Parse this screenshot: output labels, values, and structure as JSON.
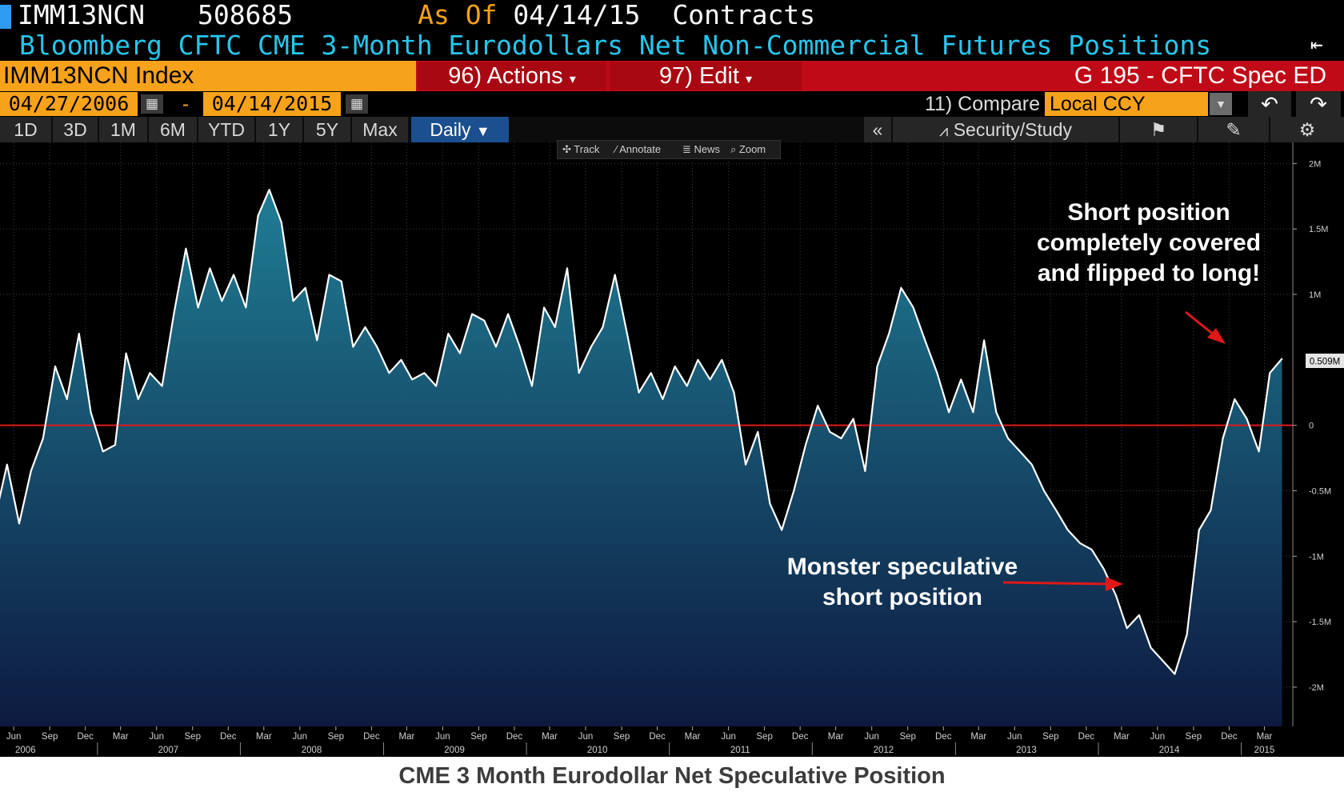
{
  "header": {
    "ticker": "IMM13NCN",
    "last_value": "508685",
    "as_of_label": "As Of",
    "as_of_date": "04/14/15",
    "units": "Contracts",
    "title": "Bloomberg CFTC CME 3-Month Eurodollars Net Non-Commercial Futures Positions",
    "security": "IMM13NCN Index",
    "actions_label": "96) Actions",
    "edit_label": "97) Edit",
    "page_label": "G 195 - CFTC Spec ED"
  },
  "range": {
    "start_date": "04/27/2006",
    "separator": "-",
    "end_date": "04/14/2015",
    "compare_label": "11) Compare",
    "currency": "Local CCY"
  },
  "periods": [
    "1D",
    "3D",
    "1M",
    "6M",
    "YTD",
    "1Y",
    "5Y",
    "Max"
  ],
  "frequency": "Daily",
  "toolbar": {
    "collapse": "«",
    "security_study": "Security/Study",
    "tools": [
      "Track",
      "Annotate",
      "News",
      "Zoom"
    ]
  },
  "colors": {
    "accent_orange": "#f7a21b",
    "bar_red": "#c00a17",
    "line": "#ffffff",
    "zero_line": "#e01818",
    "fill_top": "#1f7d94",
    "fill_bottom": "#0d1a40",
    "title_cyan": "#27c6ec"
  },
  "annotations": {
    "short_covered": [
      "Short position",
      "completely covered",
      "and flipped to long!"
    ],
    "monster_short": [
      "Monster speculative",
      "short position"
    ]
  },
  "footer_caption": "CME 3 Month Eurodollar Net Speculative Position",
  "chart_data": {
    "type": "area",
    "title": "",
    "xlabel": "",
    "ylabel": "",
    "ylim": [
      -2300000,
      2100000
    ],
    "y_ticks": [
      {
        "value": 2000000,
        "label": "2M"
      },
      {
        "value": 1500000,
        "label": "1.5M"
      },
      {
        "value": 1000000,
        "label": "1M"
      },
      {
        "value": 0,
        "label": "0"
      },
      {
        "value": -500000,
        "label": "-0.5M"
      },
      {
        "value": -1000000,
        "label": "-1M"
      },
      {
        "value": -1500000,
        "label": "-1.5M"
      },
      {
        "value": -2000000,
        "label": "-2M"
      }
    ],
    "last_value_label": "0.509M",
    "x_month_ticks": [
      "Jun",
      "Sep",
      "Dec",
      "Mar",
      "Jun",
      "Sep",
      "Dec",
      "Mar",
      "Jun",
      "Sep",
      "Dec",
      "Mar",
      "Jun",
      "Sep",
      "Dec",
      "Mar",
      "Jun",
      "Sep",
      "Dec",
      "Mar",
      "Jun",
      "Sep",
      "Dec",
      "Mar",
      "Jun",
      "Sep",
      "Dec",
      "Mar",
      "Jun",
      "Sep",
      "Dec",
      "Mar",
      "Jun",
      "Sep",
      "Dec",
      "Mar"
    ],
    "x_year_ticks": [
      "2006",
      "2007",
      "2008",
      "2009",
      "2010",
      "2011",
      "2012",
      "2013",
      "2014",
      "2015"
    ],
    "grid": true,
    "series": [
      {
        "values": [
          {
            "x": "2006-04",
            "y": -700000
          },
          {
            "x": "2006-05",
            "y": -300000
          },
          {
            "x": "2006-06",
            "y": -750000
          },
          {
            "x": "2006-07",
            "y": -350000
          },
          {
            "x": "2006-08",
            "y": -100000
          },
          {
            "x": "2006-09",
            "y": 450000
          },
          {
            "x": "2006-10",
            "y": 200000
          },
          {
            "x": "2006-11",
            "y": 700000
          },
          {
            "x": "2006-12",
            "y": 100000
          },
          {
            "x": "2007-01",
            "y": -200000
          },
          {
            "x": "2007-02",
            "y": -150000
          },
          {
            "x": "2007-03",
            "y": 550000
          },
          {
            "x": "2007-04",
            "y": 200000
          },
          {
            "x": "2007-05",
            "y": 400000
          },
          {
            "x": "2007-06",
            "y": 300000
          },
          {
            "x": "2007-07",
            "y": 850000
          },
          {
            "x": "2007-08",
            "y": 1350000
          },
          {
            "x": "2007-09",
            "y": 900000
          },
          {
            "x": "2007-10",
            "y": 1200000
          },
          {
            "x": "2007-11",
            "y": 950000
          },
          {
            "x": "2007-12",
            "y": 1150000
          },
          {
            "x": "2008-01",
            "y": 900000
          },
          {
            "x": "2008-02",
            "y": 1600000
          },
          {
            "x": "2008-03",
            "y": 1800000
          },
          {
            "x": "2008-04",
            "y": 1550000
          },
          {
            "x": "2008-05",
            "y": 950000
          },
          {
            "x": "2008-06",
            "y": 1050000
          },
          {
            "x": "2008-07",
            "y": 650000
          },
          {
            "x": "2008-08",
            "y": 1150000
          },
          {
            "x": "2008-09",
            "y": 1100000
          },
          {
            "x": "2008-10",
            "y": 600000
          },
          {
            "x": "2008-11",
            "y": 750000
          },
          {
            "x": "2008-12",
            "y": 600000
          },
          {
            "x": "2009-01",
            "y": 400000
          },
          {
            "x": "2009-02",
            "y": 500000
          },
          {
            "x": "2009-03",
            "y": 350000
          },
          {
            "x": "2009-04",
            "y": 400000
          },
          {
            "x": "2009-05",
            "y": 300000
          },
          {
            "x": "2009-06",
            "y": 700000
          },
          {
            "x": "2009-07",
            "y": 550000
          },
          {
            "x": "2009-08",
            "y": 850000
          },
          {
            "x": "2009-09",
            "y": 800000
          },
          {
            "x": "2009-10",
            "y": 600000
          },
          {
            "x": "2009-11",
            "y": 850000
          },
          {
            "x": "2009-12",
            "y": 600000
          },
          {
            "x": "2010-01",
            "y": 300000
          },
          {
            "x": "2010-02",
            "y": 900000
          },
          {
            "x": "2010-03",
            "y": 750000
          },
          {
            "x": "2010-04",
            "y": 1200000
          },
          {
            "x": "2010-05",
            "y": 400000
          },
          {
            "x": "2010-06",
            "y": 600000
          },
          {
            "x": "2010-07",
            "y": 750000
          },
          {
            "x": "2010-08",
            "y": 1150000
          },
          {
            "x": "2010-09",
            "y": 700000
          },
          {
            "x": "2010-10",
            "y": 250000
          },
          {
            "x": "2010-11",
            "y": 400000
          },
          {
            "x": "2010-12",
            "y": 200000
          },
          {
            "x": "2011-01",
            "y": 450000
          },
          {
            "x": "2011-02",
            "y": 300000
          },
          {
            "x": "2011-03",
            "y": 500000
          },
          {
            "x": "2011-04",
            "y": 350000
          },
          {
            "x": "2011-05",
            "y": 500000
          },
          {
            "x": "2011-06",
            "y": 250000
          },
          {
            "x": "2011-07",
            "y": -300000
          },
          {
            "x": "2011-08",
            "y": -50000
          },
          {
            "x": "2011-09",
            "y": -600000
          },
          {
            "x": "2011-10",
            "y": -800000
          },
          {
            "x": "2011-11",
            "y": -500000
          },
          {
            "x": "2011-12",
            "y": -150000
          },
          {
            "x": "2012-01",
            "y": 150000
          },
          {
            "x": "2012-02",
            "y": -50000
          },
          {
            "x": "2012-03",
            "y": -100000
          },
          {
            "x": "2012-04",
            "y": 50000
          },
          {
            "x": "2012-05",
            "y": -350000
          },
          {
            "x": "2012-06",
            "y": 450000
          },
          {
            "x": "2012-07",
            "y": 700000
          },
          {
            "x": "2012-08",
            "y": 1050000
          },
          {
            "x": "2012-09",
            "y": 900000
          },
          {
            "x": "2012-10",
            "y": 650000
          },
          {
            "x": "2012-11",
            "y": 400000
          },
          {
            "x": "2012-12",
            "y": 100000
          },
          {
            "x": "2013-01",
            "y": 350000
          },
          {
            "x": "2013-02",
            "y": 100000
          },
          {
            "x": "2013-03",
            "y": 650000
          },
          {
            "x": "2013-04",
            "y": 100000
          },
          {
            "x": "2013-05",
            "y": -100000
          },
          {
            "x": "2013-06",
            "y": -200000
          },
          {
            "x": "2013-07",
            "y": -300000
          },
          {
            "x": "2013-08",
            "y": -500000
          },
          {
            "x": "2013-09",
            "y": -650000
          },
          {
            "x": "2013-10",
            "y": -800000
          },
          {
            "x": "2013-11",
            "y": -900000
          },
          {
            "x": "2013-12",
            "y": -950000
          },
          {
            "x": "2014-01",
            "y": -1100000
          },
          {
            "x": "2014-02",
            "y": -1300000
          },
          {
            "x": "2014-03",
            "y": -1550000
          },
          {
            "x": "2014-04",
            "y": -1450000
          },
          {
            "x": "2014-05",
            "y": -1700000
          },
          {
            "x": "2014-06",
            "y": -1800000
          },
          {
            "x": "2014-07",
            "y": -1900000
          },
          {
            "x": "2014-08",
            "y": -1600000
          },
          {
            "x": "2014-09",
            "y": -800000
          },
          {
            "x": "2014-10",
            "y": -650000
          },
          {
            "x": "2014-11",
            "y": -100000
          },
          {
            "x": "2014-12",
            "y": 200000
          },
          {
            "x": "2015-01",
            "y": 50000
          },
          {
            "x": "2015-02",
            "y": -200000
          },
          {
            "x": "2015-03",
            "y": 400000
          },
          {
            "x": "2015-04",
            "y": 508685
          }
        ]
      }
    ]
  }
}
